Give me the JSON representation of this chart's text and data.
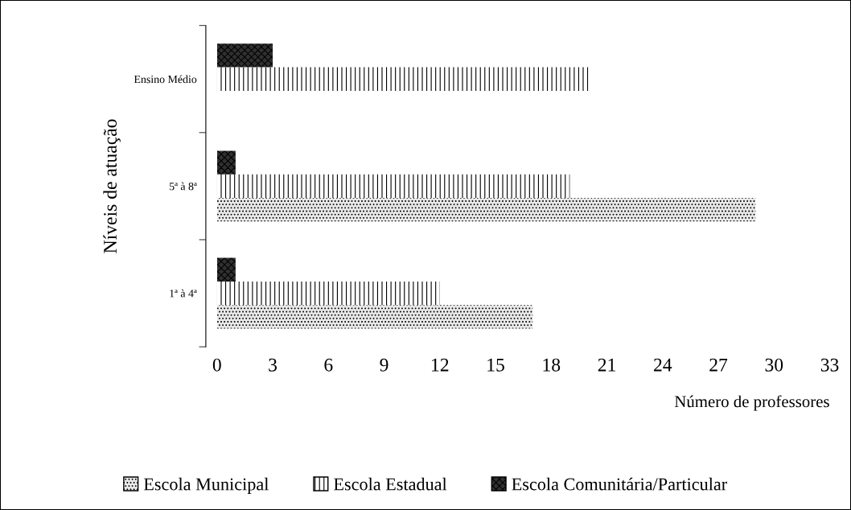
{
  "chart_data": {
    "type": "bar",
    "orientation": "horizontal",
    "ylabel": "Níveis de atuação",
    "xlabel": "Número de professores",
    "categories": [
      "Ensino Médio",
      "5ª à 8ª",
      "1ª à 4ª"
    ],
    "series": [
      {
        "name": "Escola Municipal",
        "color": "#e8e8e8",
        "values": [
          null,
          29,
          17
        ]
      },
      {
        "name": "Escola Estadual",
        "color": "#ffffff",
        "values": [
          20,
          19,
          12
        ]
      },
      {
        "name": "Escola Comunitária/Particular",
        "color": "#303030",
        "values": [
          3,
          1,
          1
        ]
      }
    ],
    "xlim": [
      0,
      33
    ],
    "xticks": [
      0,
      3,
      6,
      9,
      12,
      15,
      18,
      21,
      24,
      27,
      30,
      33
    ],
    "grid": false,
    "legend": "bottom"
  }
}
